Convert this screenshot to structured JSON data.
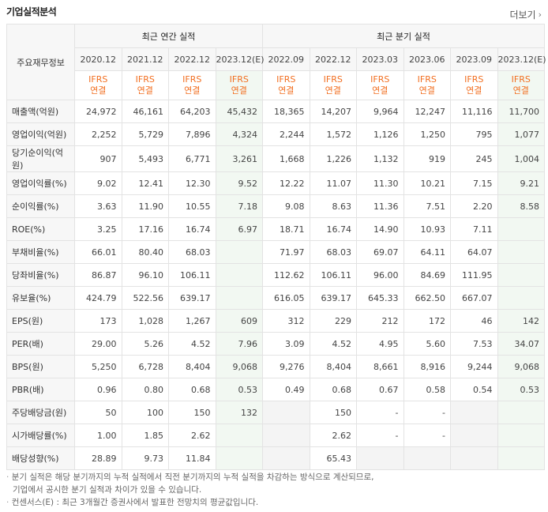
{
  "header": {
    "title": "기업실적분석",
    "more_label": "더보기",
    "more_icon": "chevron-right-icon"
  },
  "table": {
    "corner_label": "주요재무정보",
    "annual_caption": "최근 연간 실적",
    "quarterly_caption": "최근 분기 실적",
    "dates": [
      "2020.12",
      "2021.12",
      "2022.12",
      "2023.12(E)",
      "2022.09",
      "2022.12",
      "2023.03",
      "2023.06",
      "2023.09",
      "2023.12(E)"
    ],
    "basis_line1": "IFRS",
    "basis_line2": "연결",
    "rows": [
      {
        "label": "매출액(억원)",
        "values": [
          "24,972",
          "46,161",
          "64,203",
          "45,432",
          "18,365",
          "14,207",
          "9,964",
          "12,247",
          "11,116",
          "11,700"
        ]
      },
      {
        "label": "영업이익(억원)",
        "values": [
          "2,252",
          "5,729",
          "7,896",
          "4,324",
          "2,244",
          "1,572",
          "1,126",
          "1,250",
          "795",
          "1,077"
        ]
      },
      {
        "label": "당기순이익(억원)",
        "values": [
          "907",
          "5,493",
          "6,771",
          "3,261",
          "1,668",
          "1,226",
          "1,132",
          "919",
          "245",
          "1,004"
        ]
      },
      {
        "label": "영업이익률(%)",
        "values": [
          "9.02",
          "12.41",
          "12.30",
          "9.52",
          "12.22",
          "11.07",
          "11.30",
          "10.21",
          "7.15",
          "9.21"
        ]
      },
      {
        "label": "순이익률(%)",
        "values": [
          "3.63",
          "11.90",
          "10.55",
          "7.18",
          "9.08",
          "8.63",
          "11.36",
          "7.51",
          "2.20",
          "8.58"
        ]
      },
      {
        "label": "ROE(%)",
        "values": [
          "3.25",
          "17.16",
          "16.74",
          "6.97",
          "18.71",
          "16.74",
          "14.90",
          "10.93",
          "7.11",
          ""
        ]
      },
      {
        "label": "부채비율(%)",
        "values": [
          "66.01",
          "80.40",
          "68.03",
          "",
          "71.97",
          "68.03",
          "69.07",
          "64.11",
          "64.07",
          ""
        ]
      },
      {
        "label": "당좌비율(%)",
        "values": [
          "86.87",
          "96.10",
          "106.11",
          "",
          "112.62",
          "106.11",
          "96.00",
          "84.69",
          "111.95",
          ""
        ]
      },
      {
        "label": "유보율(%)",
        "values": [
          "424.79",
          "522.56",
          "639.17",
          "",
          "616.05",
          "639.17",
          "645.33",
          "662.50",
          "667.07",
          ""
        ]
      },
      {
        "label": "EPS(원)",
        "values": [
          "173",
          "1,028",
          "1,267",
          "609",
          "312",
          "229",
          "212",
          "172",
          "46",
          "142"
        ]
      },
      {
        "label": "PER(배)",
        "values": [
          "29.00",
          "5.26",
          "4.52",
          "7.96",
          "3.09",
          "4.52",
          "4.95",
          "5.60",
          "7.53",
          "34.07"
        ]
      },
      {
        "label": "BPS(원)",
        "values": [
          "5,250",
          "6,728",
          "8,404",
          "9,068",
          "9,276",
          "8,404",
          "8,661",
          "8,916",
          "9,244",
          "9,068"
        ]
      },
      {
        "label": "PBR(배)",
        "values": [
          "0.96",
          "0.80",
          "0.68",
          "0.53",
          "0.49",
          "0.68",
          "0.67",
          "0.58",
          "0.54",
          "0.53"
        ]
      },
      {
        "label": "주당배당금(원)",
        "values": [
          "50",
          "100",
          "150",
          "132",
          "",
          "150",
          "-",
          "-",
          "",
          ""
        ]
      },
      {
        "label": "시가배당률(%)",
        "values": [
          "1.00",
          "1.85",
          "2.62",
          "",
          "",
          "2.62",
          "-",
          "-",
          "",
          ""
        ]
      },
      {
        "label": "배당성향(%)",
        "values": [
          "28.89",
          "9.73",
          "11.84",
          "",
          "",
          "65.43",
          "",
          "",
          "",
          ""
        ]
      }
    ]
  },
  "notes": [
    "분기 실적은 해당 분기까지의 누적 실적에서 직전 분기까지의 누적 실적을 차감하는 방식으로 계산되므로,",
    "기업에서 공시한 분기 실적과 차이가 있을 수 있습니다.",
    "컨센서스(E) : 최근 3개월간 증권사에서 발표한 전망치의 평균값입니다."
  ],
  "colors": {
    "ifrs": "#f26f21",
    "estimate_bg": "#f2f8f2",
    "blank_bg": "#f4f4f4"
  }
}
